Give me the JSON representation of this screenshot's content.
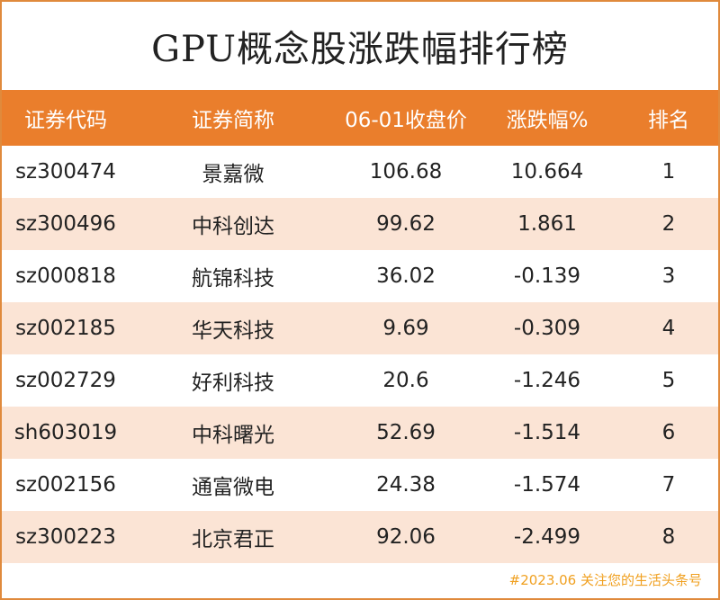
{
  "title": "GPU概念股涨跌幅排行榜",
  "chart_data": {
    "type": "table",
    "columns": [
      "证券代码",
      "证券简称",
      "06-01收盘价",
      "涨跌幅%",
      "排名"
    ],
    "rows": [
      [
        "sz300474",
        "景嘉微",
        "106.68",
        "10.664",
        "1"
      ],
      [
        "sz300496",
        "中科创达",
        "99.62",
        "1.861",
        "2"
      ],
      [
        "sz000818",
        "航锦科技",
        "36.02",
        "-0.139",
        "3"
      ],
      [
        "sz002185",
        "华天科技",
        "9.69",
        "-0.309",
        "4"
      ],
      [
        "sz002729",
        "好利科技",
        "20.6",
        "-1.246",
        "5"
      ],
      [
        "sh603019",
        "中科曙光",
        "52.69",
        "-1.514",
        "6"
      ],
      [
        "sz002156",
        "通富微电",
        "24.38",
        "-1.574",
        "7"
      ],
      [
        "sz300223",
        "北京君正",
        "92.06",
        "-2.499",
        "8"
      ]
    ]
  },
  "footer": "#2023.06 关注您的生活头条号",
  "colors": {
    "header_bg": "#ea7e2c",
    "stripe_bg": "#fbe4d5",
    "border": "#e08a3c",
    "footer_text": "#f0a020"
  }
}
